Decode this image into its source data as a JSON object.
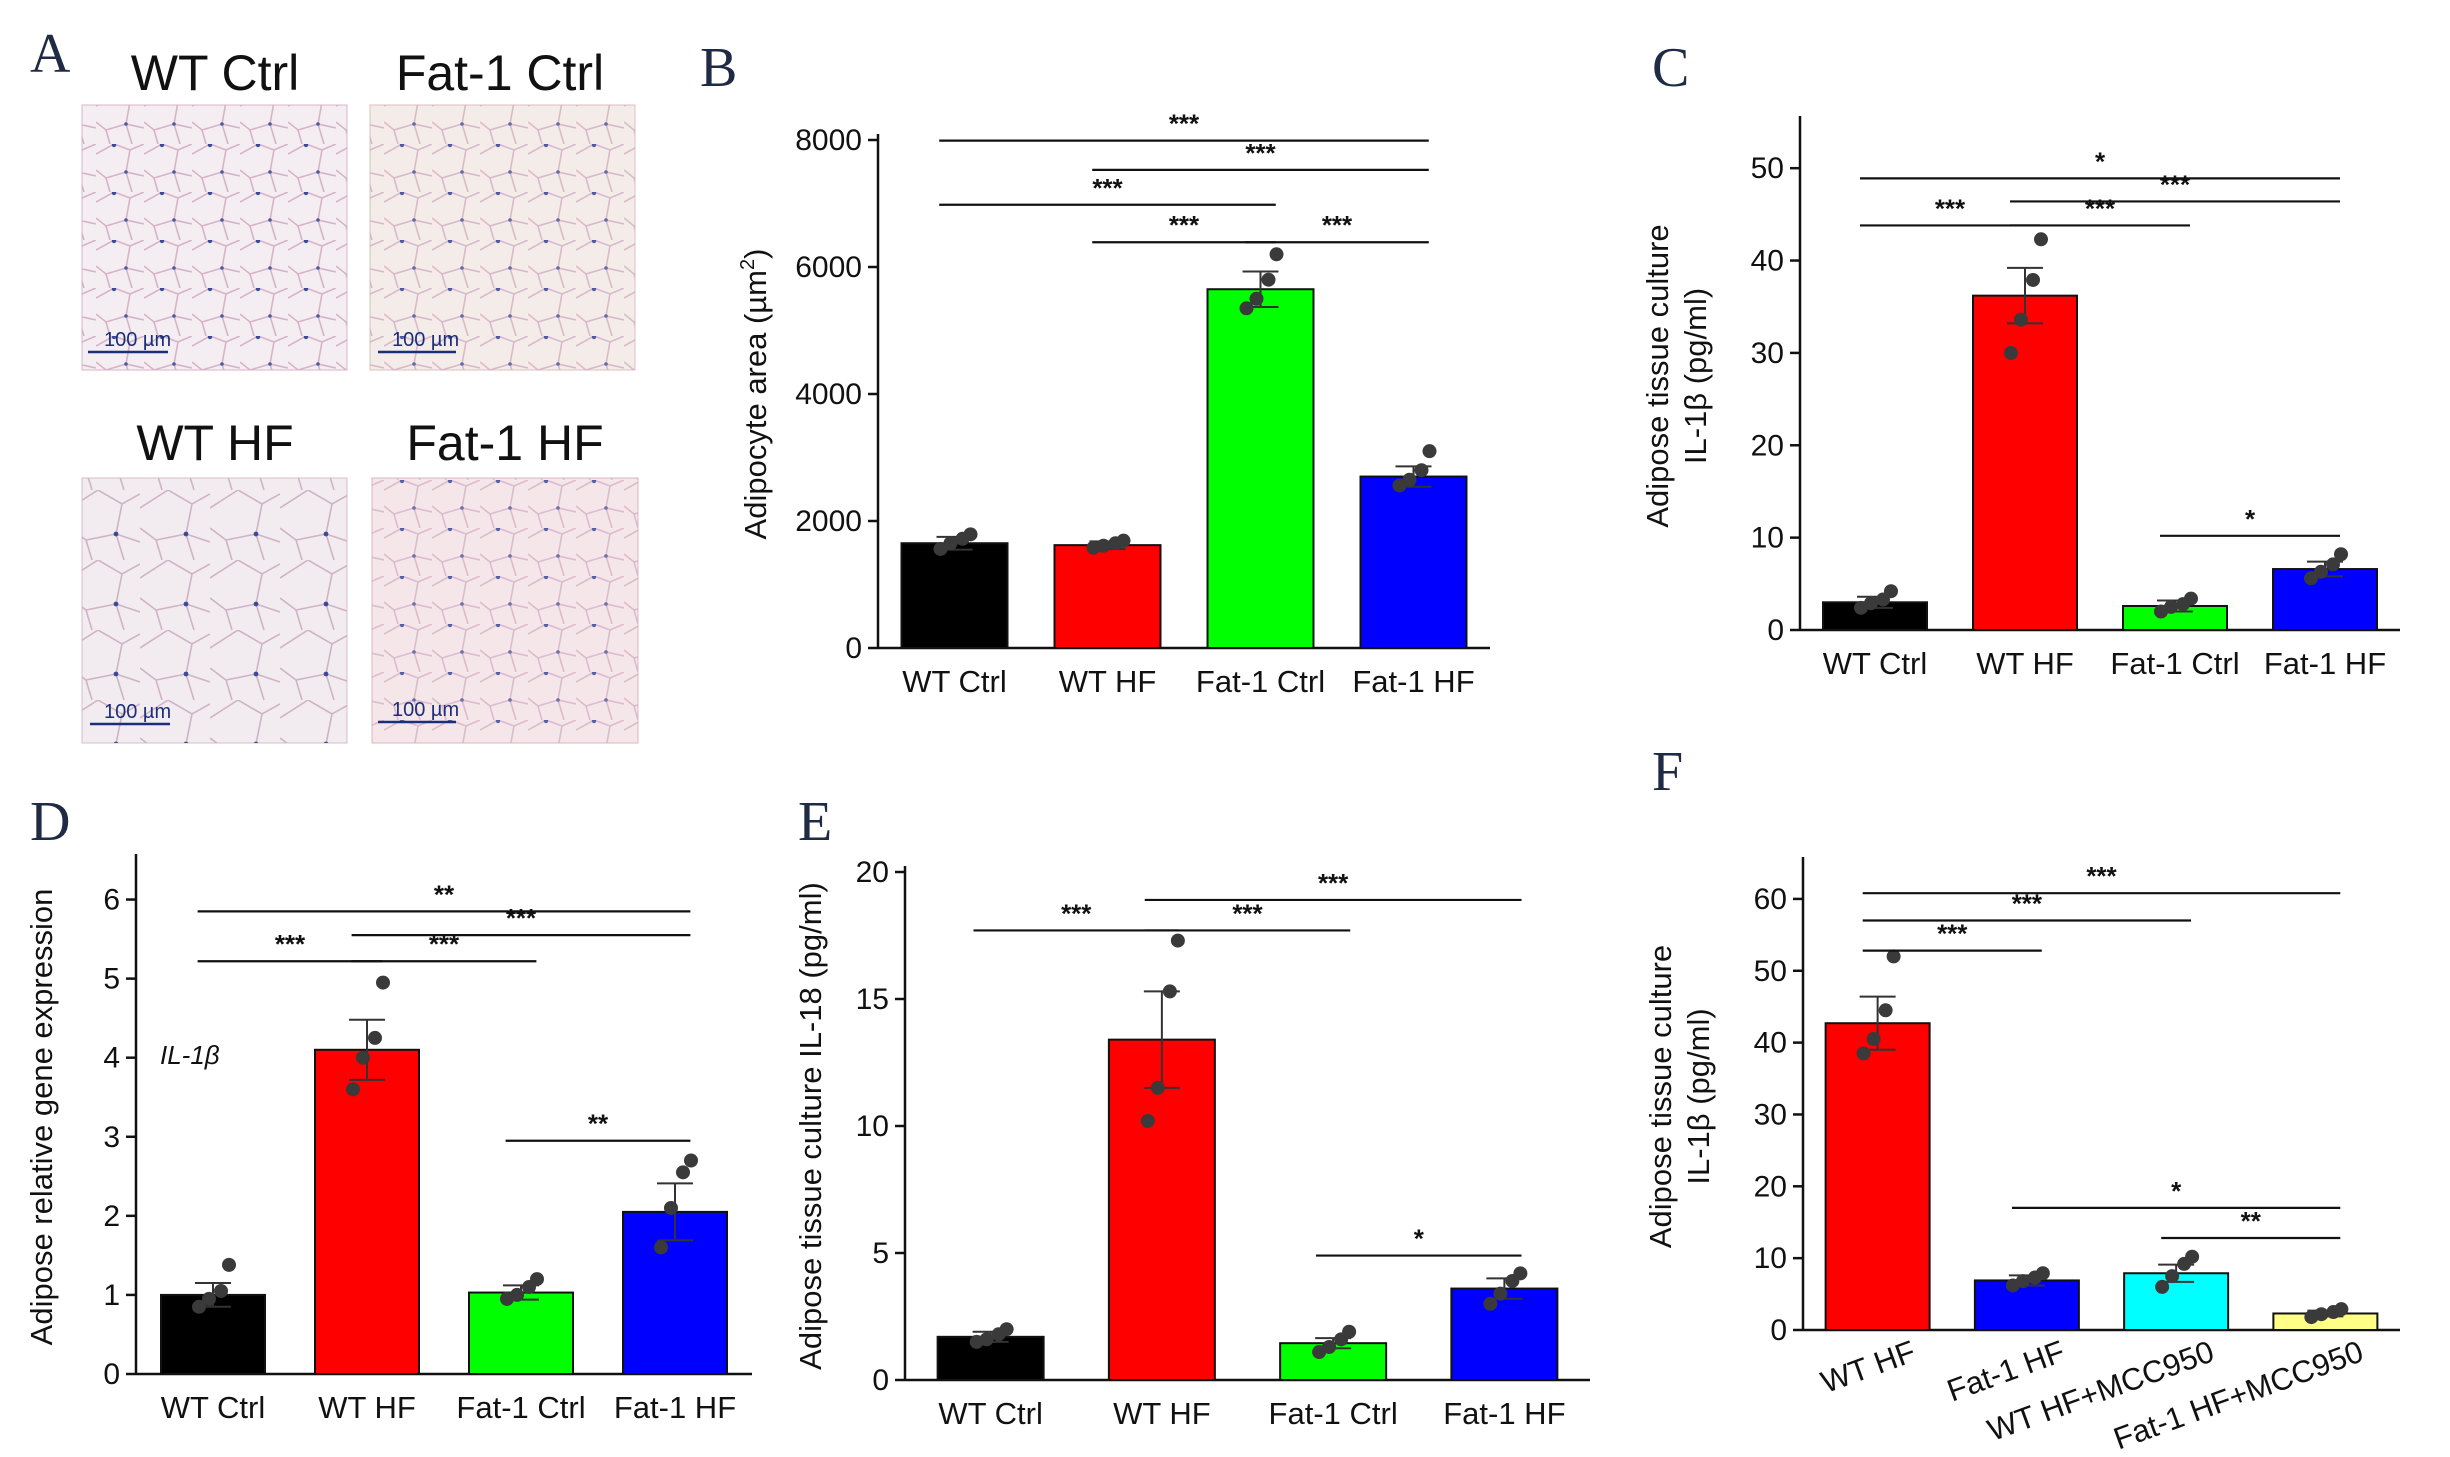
{
  "panel_labels": [
    "A",
    "B",
    "C",
    "D",
    "E",
    "F"
  ],
  "histology": {
    "images": [
      {
        "title": "WT Ctrl",
        "scale_bar": "100 µm",
        "tint": "#f4edf2",
        "edge": "#d9b6c8"
      },
      {
        "title": "Fat-1 Ctrl",
        "scale_bar": "100 µm",
        "tint": "#f3ece9",
        "edge": "#dcc0bd"
      },
      {
        "title": "WT HF",
        "scale_bar": "100 µm",
        "tint": "#f2ecf1",
        "edge": "#d8bccb"
      },
      {
        "title": "Fat-1 HF",
        "scale_bar": "100 µm",
        "tint": "#f5e6ea",
        "edge": "#dcb5c2"
      }
    ]
  },
  "chart_data": [
    {
      "id": "B",
      "type": "bar",
      "categories": [
        "WT Ctrl",
        "WT HF",
        "Fat-1 Ctrl",
        "Fat-1 HF"
      ],
      "values": [
        1650,
        1620,
        5650,
        2700
      ],
      "errors": [
        100,
        60,
        280,
        160
      ],
      "points": [
        [
          1560,
          1650,
          1720,
          1790
        ],
        [
          1580,
          1610,
          1650,
          1690
        ],
        [
          5350,
          5500,
          5800,
          6200
        ],
        [
          2560,
          2650,
          2800,
          3100
        ]
      ],
      "colors": [
        "#000000",
        "#ff0000",
        "#00ff00",
        "#0000ff"
      ],
      "ylabel": "Adipocyte area (µm²)",
      "ylabel_parts": [
        "Adipocyte area (µm",
        "2",
        ")"
      ],
      "ylim": [
        0,
        8000
      ],
      "yticks": [
        "0",
        "2000",
        "4000",
        "6000",
        "8000"
      ],
      "gene_label": "",
      "significance": [
        {
          "from": 0,
          "to": 3,
          "y": 7990,
          "label": "***"
        },
        {
          "from": 1,
          "to": 3,
          "y": 7530,
          "label": "***"
        },
        {
          "from": 0,
          "to": 2,
          "y": 6980,
          "label": "***"
        },
        {
          "from": 1,
          "to": 2,
          "y": 6390,
          "label": "***"
        },
        {
          "from": 2,
          "to": 3,
          "y": 6390,
          "label": "***"
        }
      ]
    },
    {
      "id": "C",
      "type": "bar",
      "categories": [
        "WT Ctrl",
        "WT HF",
        "Fat-1 Ctrl",
        "Fat-1 HF"
      ],
      "values": [
        3.0,
        36.2,
        2.6,
        6.6
      ],
      "errors": [
        0.6,
        3.0,
        0.6,
        0.8
      ],
      "points": [
        [
          2.4,
          2.9,
          3.3,
          4.2
        ],
        [
          30.0,
          33.6,
          37.9,
          42.3
        ],
        [
          2.0,
          2.5,
          2.8,
          3.4
        ],
        [
          5.6,
          6.3,
          7.1,
          8.2
        ]
      ],
      "colors": [
        "#000000",
        "#ff0000",
        "#00ff00",
        "#0000ff"
      ],
      "ylabel": "Adipose tissue culture IL-1β (pg/ml)",
      "ylabel_lines": [
        "Adipose tissue culture",
        "IL-1β (pg/ml)"
      ],
      "ylim": [
        0,
        55
      ],
      "yticks": [
        "0",
        "10",
        "20",
        "30",
        "40",
        "50"
      ],
      "gene_label": "",
      "significance": [
        {
          "from": 0,
          "to": 3,
          "y": 48.9,
          "label": "*"
        },
        {
          "from": 1,
          "to": 3,
          "y": 46.4,
          "label": "***"
        },
        {
          "from": 0,
          "to": 1,
          "y": 43.8,
          "label": "***"
        },
        {
          "from": 1,
          "to": 2,
          "y": 43.8,
          "label": "***"
        },
        {
          "from": 2,
          "to": 3,
          "y": 10.2,
          "label": "*"
        }
      ]
    },
    {
      "id": "D",
      "type": "bar",
      "categories": [
        "WT Ctrl",
        "WT HF",
        "Fat-1 Ctrl",
        "Fat-1 HF"
      ],
      "values": [
        1.0,
        4.1,
        1.03,
        2.05
      ],
      "errors": [
        0.15,
        0.38,
        0.09,
        0.36
      ],
      "points": [
        [
          0.85,
          0.95,
          1.05,
          1.38
        ],
        [
          3.6,
          4.0,
          4.25,
          4.95
        ],
        [
          0.95,
          1.0,
          1.1,
          1.2
        ],
        [
          1.6,
          2.1,
          2.55,
          2.7
        ]
      ],
      "colors": [
        "#000000",
        "#ff0000",
        "#00ff00",
        "#0000ff"
      ],
      "ylabel": "Adipose relative gene expression",
      "ylim": [
        0,
        6.5
      ],
      "yticks": [
        "0",
        "1",
        "2",
        "3",
        "4",
        "5",
        "6"
      ],
      "gene_label": "IL-1β",
      "significance": [
        {
          "from": 0,
          "to": 3,
          "y": 5.85,
          "label": "**"
        },
        {
          "from": 1,
          "to": 3,
          "y": 5.55,
          "label": "***"
        },
        {
          "from": 0,
          "to": 1,
          "y": 5.22,
          "label": "***"
        },
        {
          "from": 1,
          "to": 2,
          "y": 5.22,
          "label": "***"
        },
        {
          "from": 2,
          "to": 3,
          "y": 2.95,
          "label": "**"
        }
      ]
    },
    {
      "id": "E",
      "type": "bar",
      "categories": [
        "WT Ctrl",
        "WT HF",
        "Fat-1 Ctrl",
        "Fat-1 HF"
      ],
      "values": [
        1.7,
        13.4,
        1.45,
        3.6
      ],
      "errors": [
        0.2,
        1.9,
        0.2,
        0.4
      ],
      "points": [
        [
          1.5,
          1.6,
          1.8,
          2.0
        ],
        [
          10.2,
          11.5,
          15.3,
          17.3
        ],
        [
          1.1,
          1.3,
          1.6,
          1.9
        ],
        [
          3.0,
          3.4,
          3.9,
          4.2
        ]
      ],
      "colors": [
        "#000000",
        "#ff0000",
        "#00ff00",
        "#0000ff"
      ],
      "ylabel": "Adipose tissue culture IL-18 (pg/ml)",
      "ylim": [
        0,
        20
      ],
      "yticks": [
        "0",
        "5",
        "10",
        "15",
        "20"
      ],
      "gene_label": "",
      "significance": [
        {
          "from": 1,
          "to": 3,
          "y": 18.9,
          "label": "***"
        },
        {
          "from": 0,
          "to": 1,
          "y": 17.7,
          "label": "***"
        },
        {
          "from": 1,
          "to": 2,
          "y": 17.7,
          "label": "***"
        },
        {
          "from": 2,
          "to": 3,
          "y": 4.9,
          "label": "*"
        }
      ]
    },
    {
      "id": "F",
      "type": "bar",
      "categories": [
        "WT HF",
        "Fat-1 HF",
        "WT HF+MCC950",
        "Fat-1 HF+MCC950"
      ],
      "values": [
        42.7,
        6.9,
        7.9,
        2.3
      ],
      "errors": [
        3.7,
        0.7,
        1.2,
        0.4
      ],
      "points": [
        [
          38.5,
          40.5,
          44.5,
          52.0
        ],
        [
          6.2,
          6.8,
          7.3,
          7.9
        ],
        [
          6.0,
          7.5,
          9.2,
          10.2
        ],
        [
          1.8,
          2.2,
          2.5,
          2.9
        ]
      ],
      "colors": [
        "#ff0000",
        "#0000ff",
        "#00ffff",
        "#ffff88"
      ],
      "ylabel": "Adipose tissue culture IL-1β (pg/ml)",
      "ylabel_lines": [
        "Adipose tissue culture",
        "IL-1β (pg/ml)"
      ],
      "ylim": [
        0,
        65
      ],
      "yticks": [
        "0",
        "10",
        "20",
        "30",
        "40",
        "50",
        "60"
      ],
      "gene_label": "",
      "significance": [
        {
          "from": 0,
          "to": 3,
          "y": 60.8,
          "label": "***"
        },
        {
          "from": 0,
          "to": 2,
          "y": 57.0,
          "label": "***"
        },
        {
          "from": 0,
          "to": 1,
          "y": 52.8,
          "label": "***"
        },
        {
          "from": 1,
          "to": 3,
          "y": 17.0,
          "label": "*"
        },
        {
          "from": 2,
          "to": 3,
          "y": 12.8,
          "label": "**"
        }
      ]
    }
  ]
}
